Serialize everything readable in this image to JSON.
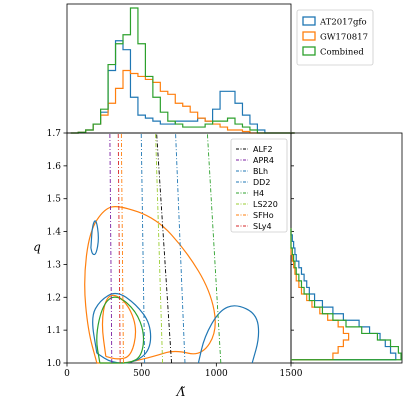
{
  "chart_data": [
    {
      "type": "histogram",
      "panel": "top-marginal",
      "x": [
        50,
        100,
        150,
        200,
        250,
        300,
        350,
        400,
        450,
        500,
        550,
        600,
        650,
        700,
        750,
        800,
        850,
        900,
        950,
        1000,
        1050,
        1100,
        1150,
        1200,
        1250,
        1300,
        1350,
        1400,
        1450,
        1500
      ],
      "series": [
        {
          "name": "AT2017gfo",
          "color": "#1f77b4",
          "values": [
            0,
            0.2,
            1,
            3,
            7,
            21,
            31,
            28,
            12,
            6,
            5,
            4,
            3,
            3,
            4,
            4,
            4,
            5,
            4,
            8,
            14,
            14,
            10,
            6,
            3,
            1,
            0,
            0,
            0,
            0
          ]
        },
        {
          "name": "GW170817",
          "color": "#ff7f0e",
          "values": [
            0,
            0.2,
            1,
            3,
            6,
            10,
            15,
            21,
            20,
            19,
            18,
            17,
            14,
            13,
            10,
            9,
            7,
            5,
            4,
            3,
            2,
            1,
            1,
            0.5,
            0,
            0,
            0,
            0,
            0,
            0
          ]
        },
        {
          "name": "Combined",
          "color": "#2ca02c",
          "values": [
            0,
            0.2,
            1,
            3,
            8,
            23,
            30,
            33,
            42,
            30,
            19,
            12,
            7,
            4,
            3,
            2,
            2,
            2,
            3,
            4,
            4,
            5,
            3,
            2,
            1,
            0,
            0,
            0,
            0,
            0
          ]
        }
      ],
      "legend": "top-right"
    },
    {
      "type": "line",
      "panel": "main",
      "xlabel": "Λ̃",
      "ylabel": "q",
      "xlim": [
        0,
        1500
      ],
      "ylim": [
        1.0,
        1.7
      ],
      "xticks": [
        "0",
        "500",
        "1000",
        "1500"
      ],
      "yticks": [
        "1.0",
        "1.1",
        "1.2",
        "1.3",
        "1.4",
        "1.5",
        "1.6",
        "1.7"
      ],
      "eos": [
        {
          "name": "ALF2",
          "color": "#000000",
          "x_at_q1": 700,
          "x_at_q17": 600
        },
        {
          "name": "APR4",
          "color": "#7b1fa2",
          "x_at_q1": 300,
          "x_at_q17": 287
        },
        {
          "name": "BLh",
          "color": "#1f77b4",
          "x_at_q1": 520,
          "x_at_q17": 497
        },
        {
          "name": "DD2",
          "color": "#1f77b4",
          "x_at_q1": 790,
          "x_at_q17": 727
        },
        {
          "name": "H4",
          "color": "#2ca02c",
          "x_at_q1": 1030,
          "x_at_q17": 940
        },
        {
          "name": "LS220",
          "color": "#9acd32",
          "x_at_q1": 640,
          "x_at_q17": 593
        },
        {
          "name": "SFHo",
          "color": "#ff7f0e",
          "x_at_q1": 378,
          "x_at_q17": 364
        },
        {
          "name": "SLy4",
          "color": "#d62728",
          "x_at_q1": 356,
          "x_at_q17": 343
        }
      ],
      "contours": [
        {
          "color": "#ff7f0e",
          "level": "outer",
          "points": [
            [
              200,
              1.0
            ],
            [
              140,
              1.1
            ],
            [
              110,
              1.25
            ],
            [
              150,
              1.4
            ],
            [
              250,
              1.47
            ],
            [
              350,
              1.48
            ],
            [
              600,
              1.44
            ],
            [
              800,
              1.34
            ],
            [
              960,
              1.22
            ],
            [
              1010,
              1.1
            ],
            [
              900,
              1.02
            ],
            [
              720,
              1.04
            ],
            [
              580,
              1.02
            ],
            [
              400,
              1.0
            ],
            [
              300,
              1.0
            ],
            [
              200,
              1.0
            ]
          ]
        },
        {
          "color": "#ff7f0e",
          "level": "inner",
          "points": [
            [
              260,
              1.02
            ],
            [
              230,
              1.12
            ],
            [
              260,
              1.2
            ],
            [
              330,
              1.21
            ],
            [
              420,
              1.17
            ],
            [
              470,
              1.1
            ],
            [
              430,
              1.02
            ],
            [
              340,
              1.01
            ],
            [
              260,
              1.02
            ]
          ]
        },
        {
          "color": "#1f77b4",
          "level": "outer",
          "points": [
            [
              200,
              1.03
            ],
            [
              160,
              1.14
            ],
            [
              220,
              1.19
            ],
            [
              330,
              1.22
            ],
            [
              460,
              1.18
            ],
            [
              560,
              1.12
            ],
            [
              560,
              1.04
            ],
            [
              450,
              1.0
            ],
            [
              300,
              1.0
            ],
            [
              200,
              1.03
            ]
          ]
        },
        {
          "color": "#1f77b4",
          "level": "left-island",
          "points": [
            [
              160,
              1.35
            ],
            [
              170,
              1.42
            ],
            [
              195,
              1.44
            ],
            [
              215,
              1.38
            ],
            [
              195,
              1.33
            ],
            [
              170,
              1.33
            ],
            [
              160,
              1.35
            ]
          ]
        },
        {
          "color": "#1f77b4",
          "level": "right-blob",
          "points": [
            [
              880,
              1.0
            ],
            [
              920,
              1.08
            ],
            [
              1020,
              1.16
            ],
            [
              1130,
              1.18
            ],
            [
              1270,
              1.15
            ],
            [
              1290,
              1.08
            ],
            [
              1240,
              1.0
            ]
          ]
        },
        {
          "color": "#2ca02c",
          "level": "outer",
          "points": [
            [
              220,
              1.0
            ],
            [
              190,
              1.08
            ],
            [
              240,
              1.18
            ],
            [
              330,
              1.21
            ],
            [
              460,
              1.16
            ],
            [
              520,
              1.09
            ],
            [
              500,
              1.02
            ],
            [
              420,
              1.0
            ],
            [
              320,
              1.0
            ],
            [
              220,
              1.0
            ]
          ]
        }
      ]
    },
    {
      "type": "histogram",
      "panel": "right-marginal",
      "orientation": "horizontal",
      "y": [
        1.02,
        1.04,
        1.06,
        1.08,
        1.1,
        1.12,
        1.14,
        1.16,
        1.18,
        1.2,
        1.22,
        1.24,
        1.26,
        1.28,
        1.3,
        1.32,
        1.34,
        1.36,
        1.38,
        1.4
      ],
      "series": [
        {
          "name": "AT2017gfo",
          "color": "#1f77b4",
          "values": [
            40,
            38,
            36,
            34,
            30,
            26,
            20,
            16,
            12,
            9,
            7,
            6,
            5,
            4,
            3,
            2,
            1.5,
            1,
            0.5,
            0
          ]
        },
        {
          "name": "GW170817",
          "color": "#ff7f0e",
          "values": [
            16,
            18,
            20,
            22,
            20,
            18,
            14,
            11,
            8,
            6,
            4,
            3,
            2,
            1.5,
            1,
            0.5,
            0,
            0,
            0,
            0
          ]
        },
        {
          "name": "Combined",
          "color": "#2ca02c",
          "values": [
            42,
            41,
            38,
            33,
            27,
            21,
            16,
            12,
            9,
            7,
            5,
            4,
            3,
            2,
            1.5,
            1,
            0.5,
            0,
            0,
            0
          ]
        }
      ]
    }
  ]
}
